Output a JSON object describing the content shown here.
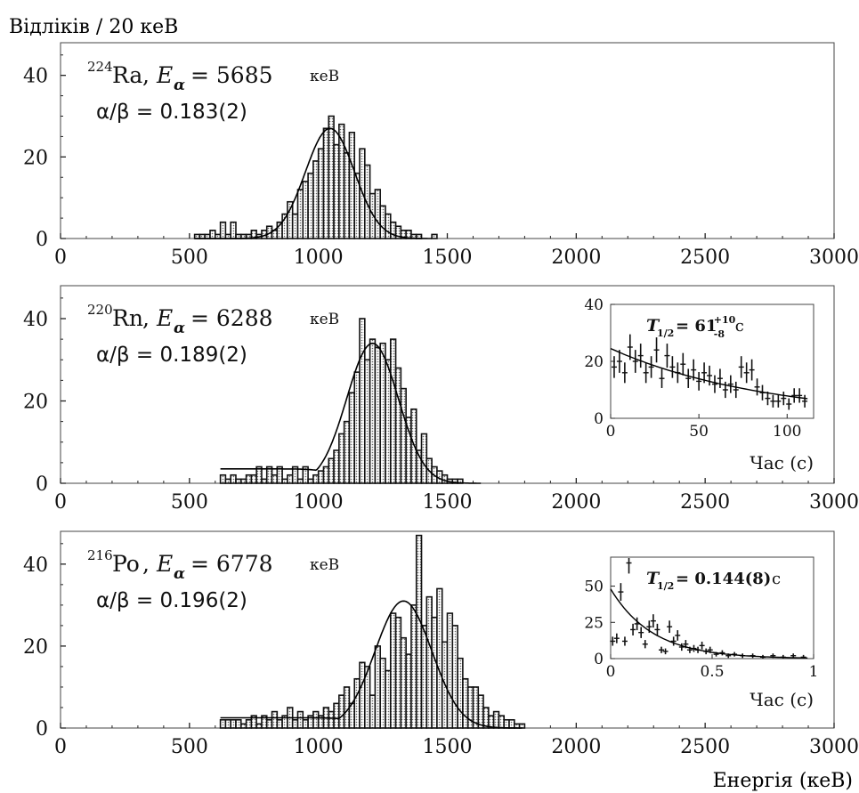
{
  "y_axis_title": "Відліків / 20 кеВ",
  "x_axis_title": "Енергія (кеВ)",
  "units_kev": "кеВ",
  "alpha_beta_prefix": "α/β = ",
  "chart_data": [
    {
      "type": "bar",
      "isotope_mass": "224",
      "isotope": "Ra",
      "energy_label": "E",
      "energy_sub": "α",
      "energy_value": "= 5685",
      "alpha_beta": "0.183(2)",
      "xlim": [
        0,
        3000
      ],
      "ylim": [
        0,
        48
      ],
      "xticks": [
        0,
        500,
        1000,
        1500,
        2000,
        2500,
        3000
      ],
      "yticks": [
        0,
        20,
        40
      ],
      "bin_width": 20,
      "bins_start": 520,
      "counts": [
        1,
        1,
        1,
        2,
        1,
        4,
        1,
        4,
        1,
        1,
        1,
        2,
        1,
        2,
        3,
        2,
        4,
        6,
        9,
        6,
        12,
        14,
        16,
        19,
        22,
        27,
        30,
        23,
        28,
        21,
        26,
        16,
        22,
        18,
        11,
        12,
        8,
        6,
        4,
        3,
        2,
        2,
        1,
        1,
        0,
        0,
        1
      ],
      "fit": {
        "mean": 1045,
        "sigma": 95,
        "amp": 27
      }
    },
    {
      "type": "bar",
      "isotope_mass": "220",
      "isotope": "Rn",
      "energy_label": "E",
      "energy_sub": "α",
      "energy_value": "= 6288",
      "alpha_beta": "0.189(2)",
      "xlim": [
        0,
        3000
      ],
      "ylim": [
        0,
        48
      ],
      "xticks": [
        0,
        500,
        1000,
        1500,
        2000,
        2500,
        3000
      ],
      "yticks": [
        0,
        20,
        40
      ],
      "bin_width": 20,
      "bins_start": 620,
      "counts": [
        2,
        1,
        2,
        1,
        1,
        2,
        2,
        4,
        1,
        4,
        2,
        4,
        1,
        2,
        4,
        1,
        4,
        1,
        2,
        3,
        4,
        6,
        8,
        12,
        15,
        22,
        27,
        40,
        30,
        35,
        33,
        34,
        30,
        35,
        28,
        23,
        16,
        18,
        8,
        12,
        6,
        4,
        3,
        2,
        1,
        1,
        1,
        0,
        0
      ],
      "fit": {
        "mean": 1210,
        "sigma": 100,
        "amp": 34,
        "tail_start": 620,
        "tail_level": 3.5
      },
      "inset": {
        "xlabel": "Час (с)",
        "xlim": [
          0,
          115
        ],
        "ylim": [
          0,
          40
        ],
        "xticks": [
          0,
          50,
          100
        ],
        "yticks": [
          0,
          20,
          40
        ],
        "half_life_label": "T",
        "half_life_sub": "1/2",
        "half_life_value": "= 61",
        "half_life_sup": "+10",
        "half_life_subv": "-8",
        "half_life_unit": "с",
        "points": [
          [
            2,
            18
          ],
          [
            5,
            20
          ],
          [
            8,
            16
          ],
          [
            11,
            25
          ],
          [
            14,
            20
          ],
          [
            17,
            22
          ],
          [
            20,
            16
          ],
          [
            23,
            18
          ],
          [
            26,
            24
          ],
          [
            29,
            14
          ],
          [
            32,
            22
          ],
          [
            35,
            18
          ],
          [
            38,
            16
          ],
          [
            41,
            19
          ],
          [
            44,
            14
          ],
          [
            47,
            17
          ],
          [
            50,
            13
          ],
          [
            53,
            16
          ],
          [
            56,
            15
          ],
          [
            59,
            12
          ],
          [
            62,
            14
          ],
          [
            65,
            10
          ],
          [
            68,
            12
          ],
          [
            71,
            10
          ],
          [
            74,
            18
          ],
          [
            77,
            16
          ],
          [
            80,
            17
          ],
          [
            83,
            11
          ],
          [
            86,
            9
          ],
          [
            89,
            7
          ],
          [
            92,
            6
          ],
          [
            95,
            6
          ],
          [
            98,
            7
          ],
          [
            101,
            5
          ],
          [
            104,
            8
          ],
          [
            107,
            8
          ],
          [
            110,
            6
          ]
        ],
        "fit": {
          "A0": 24.5,
          "tau": 88
        }
      }
    },
    {
      "type": "bar",
      "isotope_mass": "216",
      "isotope": "Po",
      "energy_label": "E",
      "energy_sub": "α",
      "energy_value": "= 6778",
      "alpha_beta": "0.196(2)",
      "xlim": [
        0,
        3000
      ],
      "ylim": [
        0,
        48
      ],
      "xticks": [
        0,
        500,
        1000,
        1500,
        2000,
        2500,
        3000
      ],
      "yticks": [
        0,
        20,
        40
      ],
      "bin_width": 20,
      "bins_start": 620,
      "counts": [
        2,
        2,
        2,
        2,
        1,
        2,
        3,
        1,
        3,
        2,
        4,
        2,
        3,
        5,
        2,
        4,
        2,
        3,
        4,
        3,
        5,
        4,
        6,
        8,
        10,
        6,
        12,
        16,
        15,
        8,
        20,
        17,
        14,
        28,
        27,
        22,
        18,
        30,
        47,
        25,
        32,
        27,
        34,
        21,
        28,
        25,
        17,
        12,
        10,
        10,
        8,
        5,
        3,
        4,
        3,
        2,
        2,
        1,
        1
      ],
      "fit": {
        "mean": 1330,
        "sigma": 110,
        "amp": 31,
        "tail_start": 620,
        "tail_level": 2.5
      },
      "inset": {
        "xlabel": "Час (с)",
        "xlim": [
          0,
          1.0
        ],
        "ylim": [
          0,
          70
        ],
        "xticks": [
          0,
          0.5,
          1
        ],
        "xtick_labels": [
          "0",
          "0.5",
          "1"
        ],
        "yticks": [
          0,
          25,
          50
        ],
        "half_life_label": "T",
        "half_life_sub": "1/2",
        "half_life_value": "= 0.144(8)",
        "half_life_unit": "с",
        "points": [
          [
            0.01,
            12
          ],
          [
            0.03,
            14
          ],
          [
            0.05,
            46
          ],
          [
            0.07,
            12
          ],
          [
            0.09,
            66
          ],
          [
            0.11,
            20
          ],
          [
            0.13,
            24
          ],
          [
            0.15,
            18
          ],
          [
            0.17,
            10
          ],
          [
            0.19,
            22
          ],
          [
            0.21,
            26
          ],
          [
            0.23,
            20
          ],
          [
            0.25,
            6
          ],
          [
            0.27,
            5
          ],
          [
            0.29,
            22
          ],
          [
            0.31,
            12
          ],
          [
            0.33,
            16
          ],
          [
            0.35,
            8
          ],
          [
            0.37,
            10
          ],
          [
            0.39,
            6
          ],
          [
            0.41,
            7
          ],
          [
            0.43,
            6
          ],
          [
            0.45,
            9
          ],
          [
            0.47,
            5
          ],
          [
            0.49,
            6
          ],
          [
            0.52,
            3
          ],
          [
            0.55,
            4
          ],
          [
            0.58,
            2
          ],
          [
            0.61,
            3
          ],
          [
            0.65,
            2
          ],
          [
            0.7,
            2
          ],
          [
            0.75,
            1
          ],
          [
            0.8,
            2
          ],
          [
            0.85,
            1
          ],
          [
            0.9,
            2
          ],
          [
            0.95,
            1
          ]
        ],
        "fit": {
          "A0": 48,
          "tau": 0.208
        }
      }
    }
  ]
}
